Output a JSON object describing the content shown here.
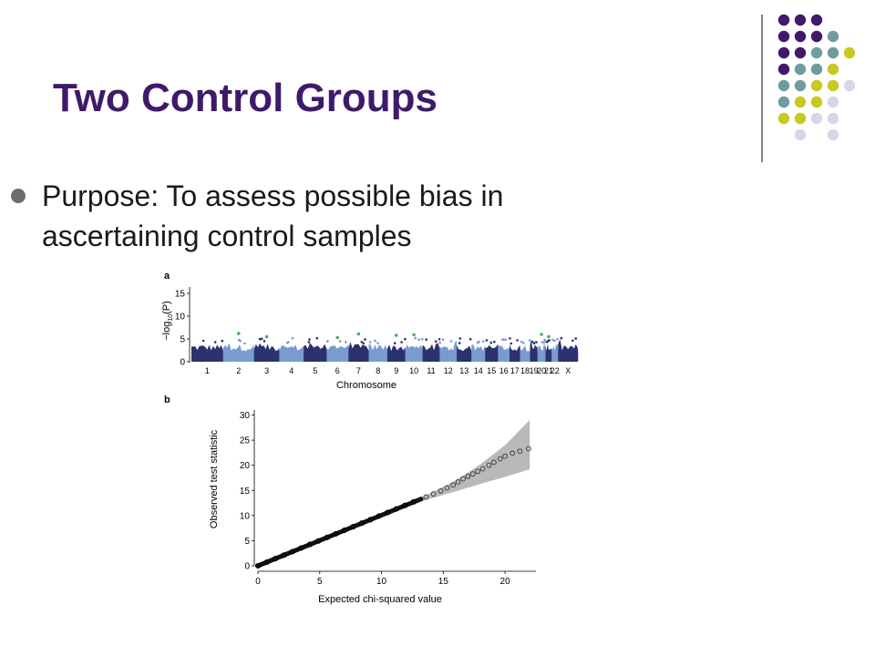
{
  "slide": {
    "title": "Two Control Groups",
    "bullet": "Purpose: To assess possible bias in ascertaining control samples"
  },
  "colors": {
    "title": "#3f1a6b",
    "purple": "#3f1a6b",
    "teal": "#6f9c9c",
    "yellow": "#c9c820",
    "lavender": "#d7d6e8",
    "navy": "#2b3270",
    "lightblue": "#7a9bd0",
    "green": "#4caf50"
  },
  "decoration": {
    "dot_colors": [
      [
        "purple",
        "purple",
        "purple",
        null,
        null
      ],
      [
        "purple",
        "purple",
        "purple",
        "teal",
        null
      ],
      [
        "purple",
        "purple",
        "teal",
        "teal",
        "yellow"
      ],
      [
        "purple",
        "teal",
        "teal",
        "yellow",
        null
      ],
      [
        "teal",
        "teal",
        "yellow",
        "yellow",
        "lavender"
      ],
      [
        "teal",
        "yellow",
        "yellow",
        "lavender",
        null
      ],
      [
        "yellow",
        "yellow",
        "lavender",
        "lavender",
        null
      ],
      [
        null,
        "lavender",
        null,
        "lavender",
        null
      ]
    ]
  },
  "chart_data": [
    {
      "panel_label": "a",
      "type": "scatter",
      "subtype": "manhattan",
      "xlabel": "Chromosome",
      "ylabel_main": "−log",
      "ylabel_sub": "10",
      "ylabel_tail": "(P)",
      "yticks": [
        0,
        5,
        10,
        15
      ],
      "ylim": [
        0,
        16
      ],
      "chromosomes": [
        "1",
        "2",
        "3",
        "4",
        "5",
        "6",
        "7",
        "8",
        "9",
        "10",
        "11",
        "12",
        "13",
        "14",
        "15",
        "16",
        "17",
        "18",
        "19",
        "20",
        "21",
        "22",
        "X"
      ],
      "chromosome_relative_sizes": [
        249,
        243,
        198,
        191,
        181,
        171,
        159,
        146,
        141,
        136,
        135,
        134,
        115,
        107,
        102,
        90,
        83,
        78,
        59,
        63,
        48,
        51,
        155
      ],
      "highlighted_peaks": [
        {
          "chromosome": "2",
          "value": 6.2
        },
        {
          "chromosome": "3",
          "value": 5.5
        },
        {
          "chromosome": "6",
          "value": 5.3
        },
        {
          "chromosome": "7",
          "value": 6.1
        },
        {
          "chromosome": "9",
          "value": 5.8
        },
        {
          "chromosome": "10",
          "value": 5.9
        },
        {
          "chromosome": "20",
          "value": 6.0
        },
        {
          "chromosome": "21",
          "value": 5.5
        }
      ]
    },
    {
      "panel_label": "b",
      "type": "scatter",
      "subtype": "qq",
      "xlabel": "Expected chi-squared value",
      "ylabel": "Observed test statistic",
      "xticks": [
        0,
        5,
        10,
        15,
        20
      ],
      "yticks": [
        0,
        5,
        10,
        15,
        20,
        25,
        30
      ],
      "xlim": [
        0,
        22.5
      ],
      "ylim": [
        0,
        31
      ],
      "confidence_band": {
        "x": [
          12,
          14,
          16,
          18,
          20,
          22
        ],
        "lower": [
          11.8,
          13.4,
          14.8,
          16.3,
          17.7,
          19.2
        ],
        "upper": [
          12.3,
          14.5,
          17.0,
          20.2,
          24.0,
          29.0
        ]
      },
      "tail_points": [
        {
          "x": 13.6,
          "y": 13.7
        },
        {
          "x": 14.2,
          "y": 14.3
        },
        {
          "x": 14.8,
          "y": 14.9
        },
        {
          "x": 15.3,
          "y": 15.5
        },
        {
          "x": 15.8,
          "y": 16.1
        },
        {
          "x": 16.2,
          "y": 16.7
        },
        {
          "x": 16.6,
          "y": 17.3
        },
        {
          "x": 17.0,
          "y": 17.8
        },
        {
          "x": 17.4,
          "y": 18.3
        },
        {
          "x": 17.8,
          "y": 18.8
        },
        {
          "x": 18.2,
          "y": 19.3
        },
        {
          "x": 18.7,
          "y": 20.0
        },
        {
          "x": 19.1,
          "y": 20.6
        },
        {
          "x": 19.6,
          "y": 21.3
        },
        {
          "x": 20.0,
          "y": 21.8
        },
        {
          "x": 20.6,
          "y": 22.4
        },
        {
          "x": 21.2,
          "y": 22.8
        },
        {
          "x": 21.9,
          "y": 23.3
        }
      ]
    }
  ]
}
